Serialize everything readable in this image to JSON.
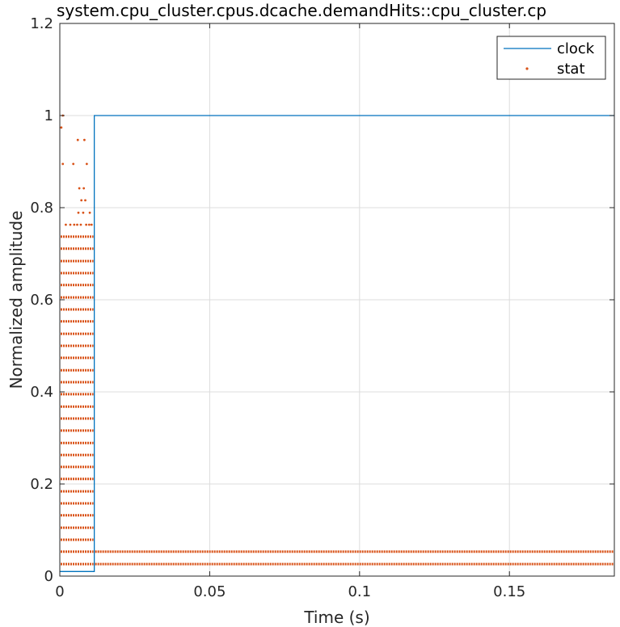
{
  "chart_data": {
    "type": "line",
    "title": "system.cpu_cluster.cpus.dcache.demandHits::cpu_cluster.cp",
    "xlabel": "Time (s)",
    "ylabel": "Normalized amplitude",
    "xlim": [
      0,
      0.185
    ],
    "ylim": [
      0,
      1.2
    ],
    "xticks": [
      0,
      0.05,
      0.1,
      0.15
    ],
    "xtick_labels": [
      "0",
      "0.05",
      "0.1",
      "0.15"
    ],
    "yticks": [
      0,
      0.2,
      0.4,
      0.6,
      0.8,
      1,
      1.2
    ],
    "ytick_labels": [
      "0",
      "0.2",
      "0.4",
      "0.6",
      "0.8",
      "1",
      "1.2"
    ],
    "grid": true,
    "legend_position": "top-right",
    "colors": {
      "clock": "#0072BD",
      "stat": "#D95319"
    },
    "series": [
      {
        "name": "clock",
        "style": "line",
        "x": [
          0,
          0.0115,
          0.0115,
          0.185
        ],
        "y": [
          0.01,
          0.01,
          1,
          1
        ]
      },
      {
        "name": "stat",
        "style": "dots",
        "x_range": [
          0,
          0.0115
        ],
        "levels": [
          0.026,
          0.053,
          0.079,
          0.105,
          0.132,
          0.158,
          0.184,
          0.211,
          0.237,
          0.263,
          0.289,
          0.316,
          0.342,
          0.368,
          0.395,
          0.421,
          0.447,
          0.474,
          0.5,
          0.526,
          0.553,
          0.579,
          0.605,
          0.632,
          0.658,
          0.684,
          0.711,
          0.737
        ],
        "sparse_points": [
          {
            "x": 0.001,
            "y": 1.0
          },
          {
            "x": 0.0005,
            "y": 0.974
          },
          {
            "x": 0.006,
            "y": 0.947
          },
          {
            "x": 0.0082,
            "y": 0.947
          },
          {
            "x": 0.001,
            "y": 0.895
          },
          {
            "x": 0.0045,
            "y": 0.895
          },
          {
            "x": 0.009,
            "y": 0.895
          },
          {
            "x": 0.0065,
            "y": 0.842
          },
          {
            "x": 0.008,
            "y": 0.842
          },
          {
            "x": 0.0072,
            "y": 0.816
          },
          {
            "x": 0.0085,
            "y": 0.816
          },
          {
            "x": 0.0062,
            "y": 0.789
          },
          {
            "x": 0.0078,
            "y": 0.789
          },
          {
            "x": 0.01,
            "y": 0.789
          },
          {
            "x": 0.002,
            "y": 0.763
          },
          {
            "x": 0.0035,
            "y": 0.763
          },
          {
            "x": 0.0048,
            "y": 0.763
          },
          {
            "x": 0.0058,
            "y": 0.763
          },
          {
            "x": 0.007,
            "y": 0.763
          },
          {
            "x": 0.0088,
            "y": 0.763
          },
          {
            "x": 0.0098,
            "y": 0.763
          },
          {
            "x": 0.0106,
            "y": 0.763
          }
        ],
        "tail_levels": [
          0.026,
          0.053
        ],
        "tail_x_range": [
          0.0115,
          0.185
        ]
      }
    ]
  }
}
